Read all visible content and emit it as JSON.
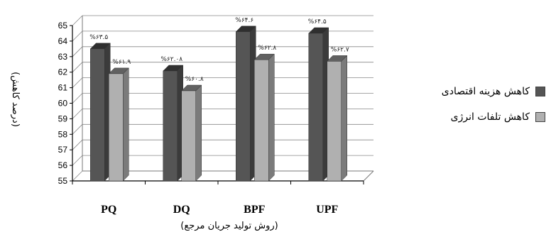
{
  "chart_data": {
    "type": "bar",
    "categories": [
      "PQ",
      "DQ",
      "BPF",
      "UPF"
    ],
    "series": [
      {
        "name": "کاهش هزینه اقتصادی",
        "values": [
          63.5,
          62.08,
          64.6,
          64.5
        ],
        "labels": [
          "%۶۳.۵",
          "%۶۲.۰۸",
          "%۶۴.۶",
          "%۶۴.۵"
        ],
        "color": "#555555"
      },
      {
        "name": "کاهش تلفات انرژی",
        "values": [
          61.9,
          60.8,
          62.8,
          62.7
        ],
        "labels": [
          "%۶۱.۹",
          "%۶۰.۸",
          "%۶۲.۸",
          "%۶۲.۷"
        ],
        "color": "#b0b0b0"
      }
    ],
    "ylim": [
      55,
      65
    ],
    "yticks": [
      "55",
      "56",
      "57",
      "58",
      "59",
      "60",
      "61",
      "62",
      "63",
      "64",
      "65"
    ],
    "xlabel": "(روش تولید جریان مرجع)",
    "ylabel": "(درصد کاهش)",
    "grid": true,
    "legend_position": "right"
  }
}
